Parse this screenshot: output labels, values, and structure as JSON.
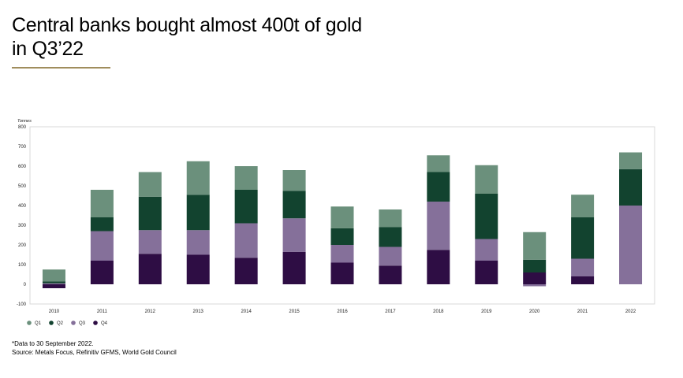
{
  "title_lines": [
    "Central banks bought almost 400t of gold",
    "in Q3’22"
  ],
  "footnote": "*Data to 30 September 2022.",
  "source": "Source: Metals Focus, Refinitiv GFMS, World Gold Council",
  "colors": {
    "Q1": "#6b907c",
    "Q2": "#12432f",
    "Q3": "#85709a",
    "Q4": "#2e0d44",
    "accent": "#a08d5d"
  },
  "chart_data": {
    "type": "bar",
    "stacked": true,
    "ylabel": "Tonnes",
    "ylim": [
      -100,
      800
    ],
    "yticks": [
      -100,
      0,
      100,
      200,
      300,
      400,
      500,
      600,
      700,
      800
    ],
    "categories": [
      "2010",
      "2011",
      "2012",
      "2013",
      "2014",
      "2015",
      "2016",
      "2017",
      "2018",
      "2019",
      "2020",
      "2021",
      "2022"
    ],
    "series": [
      {
        "name": "Q1",
        "values": [
          60,
          140,
          125,
          170,
          120,
          105,
          110,
          90,
          85,
          145,
          140,
          115,
          85
        ]
      },
      {
        "name": "Q2",
        "values": [
          10,
          70,
          170,
          180,
          170,
          140,
          85,
          100,
          150,
          230,
          65,
          210,
          185
        ]
      },
      {
        "name": "Q3",
        "values": [
          5,
          150,
          120,
          125,
          175,
          170,
          90,
          95,
          245,
          110,
          0,
          90,
          400
        ]
      },
      {
        "name": "Q4",
        "values": [
          -20,
          120,
          155,
          150,
          135,
          165,
          110,
          95,
          175,
          120,
          60,
          40,
          0
        ]
      }
    ],
    "negative_stack": {
      "2020": -10
    },
    "legend": "bottom-left",
    "grid": false
  }
}
